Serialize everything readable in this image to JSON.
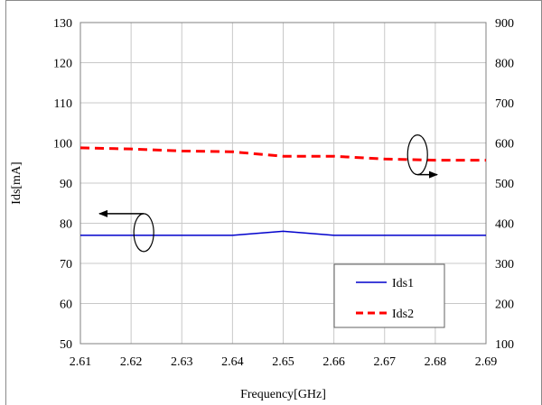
{
  "chart_data": {
    "type": "line",
    "title": "",
    "xlabel": "Frequency[GHz]",
    "ylabel": "Ids[mA]",
    "y2label": "",
    "x": [
      2.61,
      2.62,
      2.63,
      2.64,
      2.65,
      2.66,
      2.67,
      2.68,
      2.69
    ],
    "xticks": [
      "2.61",
      "2.62",
      "2.63",
      "2.64",
      "2.65",
      "2.66",
      "2.67",
      "2.68",
      "2.69"
    ],
    "xlim": [
      2.61,
      2.69
    ],
    "ylim": [
      50,
      130
    ],
    "yticks": [
      "50",
      "60",
      "70",
      "80",
      "90",
      "100",
      "110",
      "120",
      "130"
    ],
    "y2lim": [
      100,
      900
    ],
    "y2ticks": [
      "100",
      "200",
      "300",
      "400",
      "500",
      "600",
      "700",
      "800",
      "900"
    ],
    "grid": true,
    "legend_position": "bottom-right",
    "series": [
      {
        "name": "Ids1",
        "axis": "left",
        "color": "#0000cc",
        "style": "solid",
        "values": [
          77,
          77,
          77,
          77,
          78,
          77,
          77,
          77,
          77
        ]
      },
      {
        "name": "Ids2",
        "axis": "right",
        "color": "#ff0000",
        "style": "dashed",
        "values": [
          588,
          585,
          580,
          578,
          567,
          567,
          560,
          557,
          557
        ]
      }
    ],
    "annotations": [
      {
        "type": "axis-indicator",
        "series": "Ids1",
        "points_to": "left-axis"
      },
      {
        "type": "axis-indicator",
        "series": "Ids2",
        "points_to": "right-axis"
      }
    ]
  }
}
